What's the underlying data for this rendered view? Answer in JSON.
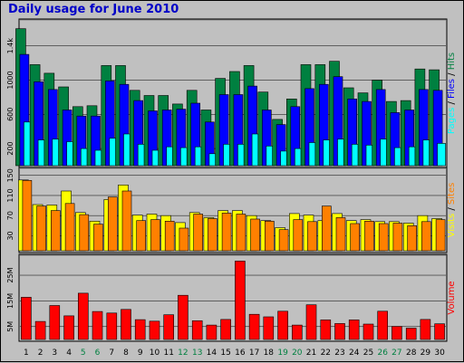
{
  "chart_data": {
    "type": "bar",
    "title": "Daily usage for June 2010",
    "categories": [
      "1",
      "2",
      "3",
      "4",
      "5",
      "6",
      "7",
      "8",
      "9",
      "10",
      "11",
      "12",
      "13",
      "14",
      "15",
      "16",
      "17",
      "18",
      "19",
      "20",
      "21",
      "22",
      "23",
      "24",
      "25",
      "26",
      "27",
      "28",
      "29",
      "30"
    ],
    "weekend_days": [
      "5",
      "6",
      "12",
      "13",
      "19",
      "20",
      "26",
      "27"
    ],
    "colors": {
      "hits": "#008040",
      "files": "#0000FF",
      "pages": "#00FFFF",
      "visits": "#FFFF00",
      "sites": "#FF8000",
      "volume": "#FF0000",
      "weekend": "#008040",
      "weekday": "#000000"
    },
    "panels": [
      {
        "id": "hits",
        "ylim": [
          0,
          1650
        ],
        "ticks": [
          {
            "v": 200,
            "label": "200"
          },
          {
            "v": 600,
            "label": "600"
          },
          {
            "v": 1000,
            "label": "1000"
          },
          {
            "v": 1400,
            "label": "1.4k"
          }
        ],
        "legend": [
          {
            "text": "Pages",
            "color": "#00FFFF"
          },
          {
            "text": " / ",
            "color": "#000000"
          },
          {
            "text": "Files",
            "color": "#0000FF"
          },
          {
            "text": " / ",
            "color": "#000000"
          },
          {
            "text": "Hits",
            "color": "#008040"
          }
        ],
        "series": [
          {
            "name": "Hits",
            "color": "#008040",
            "values": [
              1600,
              1180,
              1080,
              920,
              690,
              700,
              1170,
              1170,
              880,
              820,
              820,
              720,
              880,
              650,
              1020,
              1100,
              1170,
              860,
              540,
              780,
              1180,
              1180,
              1220,
              910,
              850,
              1000,
              750,
              760,
              1130,
              1120
            ]
          },
          {
            "name": "Files",
            "color": "#0000FF",
            "values": [
              1300,
              980,
              890,
              650,
              580,
              580,
              990,
              950,
              760,
              640,
              650,
              660,
              730,
              510,
              830,
              830,
              930,
              650,
              480,
              690,
              900,
              950,
              1040,
              780,
              750,
              890,
              620,
              650,
              890,
              880
            ]
          },
          {
            "name": "Pages",
            "color": "#00FFFF",
            "values": [
              510,
              300,
              310,
              280,
              200,
              180,
              320,
              370,
              250,
              180,
              220,
              210,
              220,
              140,
              250,
              250,
              370,
              230,
              170,
              200,
              270,
              300,
              310,
              250,
              240,
              310,
              210,
              220,
              300,
              260
            ]
          }
        ]
      },
      {
        "id": "visits",
        "ylim": [
          0,
          155
        ],
        "ticks": [
          {
            "v": 30,
            "label": "30"
          },
          {
            "v": 70,
            "label": "70"
          },
          {
            "v": 110,
            "label": "110"
          },
          {
            "v": 150,
            "label": "150"
          }
        ],
        "legend": [
          {
            "text": "Visits",
            "color": "#FFFF00"
          },
          {
            "text": " / ",
            "color": "#000000"
          },
          {
            "text": "Sites",
            "color": "#FF8000"
          }
        ],
        "series": [
          {
            "name": "Visits",
            "color": "#FFFF00",
            "values": [
              141,
              92,
              91,
              119,
              76,
              59,
              102,
              131,
              71,
              73,
              70,
              56,
              76,
              66,
              80,
              80,
              70,
              60,
              46,
              74,
              71,
              60,
              74,
              60,
              62,
              58,
              58,
              55,
              70,
              64
            ]
          },
          {
            "name": "Sites",
            "color": "#FF8000",
            "values": [
              140,
              89,
              80,
              94,
              72,
              53,
              107,
              119,
              60,
              62,
              59,
              45,
              73,
              64,
              75,
              73,
              63,
              59,
              42,
              62,
              58,
              89,
              66,
              54,
              59,
              54,
              55,
              50,
              58,
              62
            ]
          }
        ]
      },
      {
        "id": "volume",
        "ylim": [
          0,
          3100
        ],
        "ticks": [
          {
            "v": 500,
            "label": "5M"
          },
          {
            "v": 1500,
            "label": "15M"
          },
          {
            "v": 2500,
            "label": "25M"
          }
        ],
        "legend": [
          {
            "text": "Volume",
            "color": "#FF0000"
          }
        ],
        "series": [
          {
            "name": "Volume",
            "color": "#FF0000",
            "values": [
              1640,
              700,
              1320,
              920,
              1800,
              1090,
              1030,
              1170,
              770,
              710,
              960,
              1720,
              730,
              560,
              780,
              3050,
              980,
              880,
              1100,
              560,
              1350,
              760,
              620,
              760,
              600,
              1100,
              510,
              440,
              780,
              610
            ]
          }
        ]
      }
    ]
  }
}
